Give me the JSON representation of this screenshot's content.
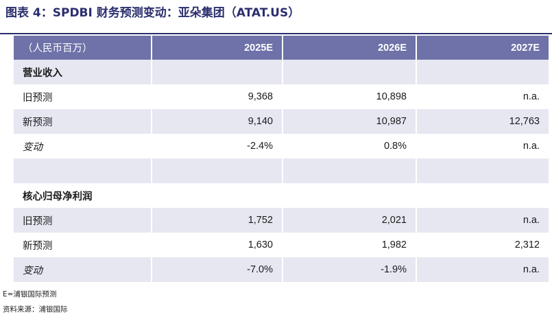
{
  "title": "图表 4：SPDBI 财务预测变动：亚朵集团（ATAT.US）",
  "table": {
    "header": [
      "（人民币百万）",
      "2025E",
      "2026E",
      "2027E"
    ],
    "rows": [
      {
        "label": "营业收入",
        "values": [
          "",
          "",
          ""
        ],
        "kind": "section"
      },
      {
        "label": "旧预测",
        "values": [
          "9,368",
          "10,898",
          "n.a."
        ],
        "kind": "data"
      },
      {
        "label": "新预测",
        "values": [
          "9,140",
          "10,987",
          "12,763"
        ],
        "kind": "data"
      },
      {
        "label": "变动",
        "values": [
          "-2.4%",
          "0.8%",
          "n.a."
        ],
        "kind": "change"
      },
      {
        "label": "",
        "values": [
          "",
          "",
          ""
        ],
        "kind": "blank"
      },
      {
        "label": "核心归母净利润",
        "values": [
          "",
          "",
          ""
        ],
        "kind": "section"
      },
      {
        "label": "旧预测",
        "values": [
          "1,752",
          "2,021",
          "n.a."
        ],
        "kind": "data"
      },
      {
        "label": "新预测",
        "values": [
          "1,630",
          "1,982",
          "2,312"
        ],
        "kind": "data"
      },
      {
        "label": "变动",
        "values": [
          "-7.0%",
          "-1.9%",
          "n.a."
        ],
        "kind": "change"
      }
    ]
  },
  "notes": {
    "footnote": "E=浦银国际预测",
    "source": "资料来源：浦银国际"
  }
}
